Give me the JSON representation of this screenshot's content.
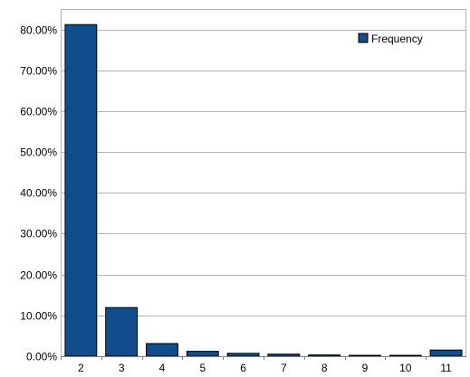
{
  "chart_data": {
    "type": "bar",
    "categories": [
      "2",
      "3",
      "4",
      "5",
      "6",
      "7",
      "8",
      "9",
      "10",
      "11"
    ],
    "series": [
      {
        "name": "Frequency",
        "values": [
          81.2,
          11.9,
          3.1,
          1.2,
          0.7,
          0.5,
          0.3,
          0.2,
          0.2,
          1.5
        ]
      }
    ],
    "ylim": [
      0,
      80
    ],
    "yticks": [
      "0.00%",
      "10.00%",
      "20.00%",
      "30.00%",
      "40.00%",
      "50.00%",
      "60.00%",
      "70.00%",
      "80.00%"
    ],
    "grid": true,
    "legend_position": "top-right",
    "colors": {
      "bar": "#0f4d8c",
      "bar_edge": "#000000",
      "grid": "#b3b3b3",
      "axis": "#808080"
    }
  }
}
